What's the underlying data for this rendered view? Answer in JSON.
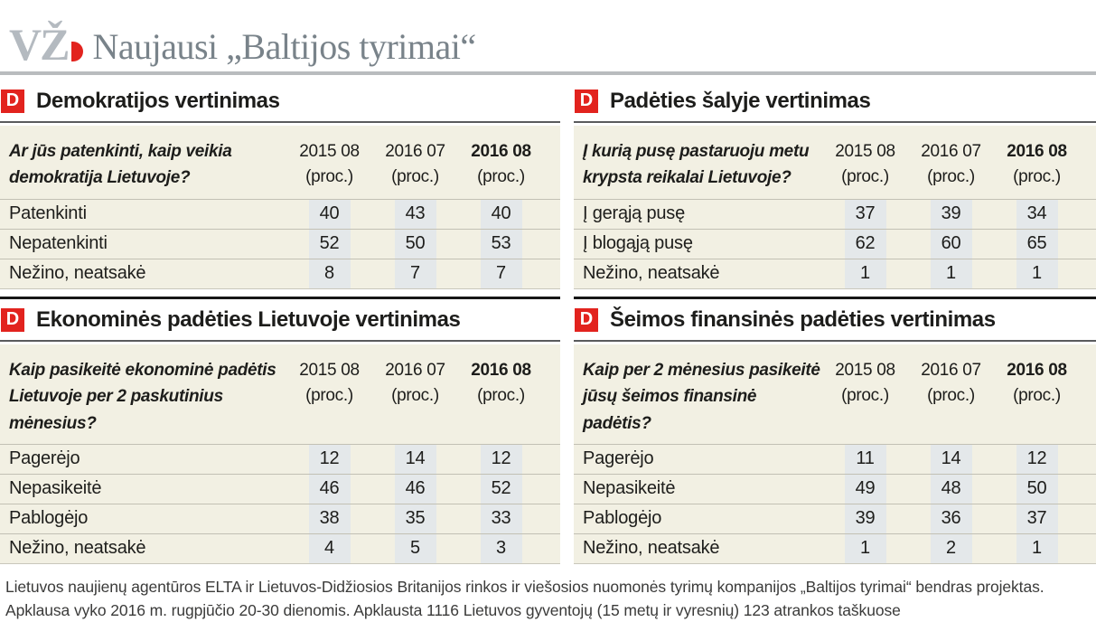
{
  "header": {
    "logo": "VŽ",
    "title": "Naujausi „Baltijos tyrimai“"
  },
  "icon": {
    "glyph": "D"
  },
  "colors": {
    "accent_red": "#e2231e",
    "panel_beige": "#f2f0e3",
    "column_stripe": "#e4e8ea",
    "logo_gray": "#b4bac0",
    "header_title_gray": "#79838a",
    "divider_black": "#161616"
  },
  "chart_data": [
    {
      "type": "table",
      "title": "Demokratijos vertinimas",
      "question": "Ar jūs patenkinti, kaip veikia demokratija Lietuvoje?",
      "columns": [
        "2015 08",
        "2016 07",
        "2016 08"
      ],
      "unit": "(proc.)",
      "bold_column": 2,
      "rows": [
        {
          "label": "Patenkinti",
          "values": [
            40,
            43,
            40
          ]
        },
        {
          "label": "Nepatenkinti",
          "values": [
            52,
            50,
            53
          ]
        },
        {
          "label": "Nežino, neatsakė",
          "values": [
            8,
            7,
            7
          ]
        }
      ]
    },
    {
      "type": "table",
      "title": "Padėties šalyje vertinimas",
      "question": "Į kurią pusę pastaruoju metu krypsta reikalai Lietuvoje?",
      "columns": [
        "2015 08",
        "2016 07",
        "2016 08"
      ],
      "unit": "(proc.)",
      "bold_column": 2,
      "rows": [
        {
          "label": "Į gerąją pusę",
          "values": [
            37,
            39,
            34
          ]
        },
        {
          "label": "Į blogąją pusę",
          "values": [
            62,
            60,
            65
          ]
        },
        {
          "label": "Nežino, neatsakė",
          "values": [
            1,
            1,
            1
          ]
        }
      ]
    },
    {
      "type": "table",
      "title": "Ekonominės padėties Lietuvoje vertinimas",
      "question": "Kaip pasikeitė ekonominė padėtis Lietuvoje per 2 paskutinius mėnesius?",
      "columns": [
        "2015 08",
        "2016 07",
        "2016 08"
      ],
      "unit": "(proc.)",
      "bold_column": 2,
      "rows": [
        {
          "label": "Pagerėjo",
          "values": [
            12,
            14,
            12
          ]
        },
        {
          "label": "Nepasikeitė",
          "values": [
            46,
            46,
            52
          ]
        },
        {
          "label": "Pablogėjo",
          "values": [
            38,
            35,
            33
          ]
        },
        {
          "label": "Nežino, neatsakė",
          "values": [
            4,
            5,
            3
          ]
        }
      ]
    },
    {
      "type": "table",
      "title": "Šeimos finansinės padėties vertinimas",
      "question": "Kaip per 2 mėnesius pasikeitė jūsų šeimos finansinė padėtis?",
      "columns": [
        "2015 08",
        "2016 07",
        "2016 08"
      ],
      "unit": "(proc.)",
      "bold_column": 2,
      "rows": [
        {
          "label": "Pagerėjo",
          "values": [
            11,
            14,
            12
          ]
        },
        {
          "label": "Nepasikeitė",
          "values": [
            49,
            48,
            50
          ]
        },
        {
          "label": "Pablogėjo",
          "values": [
            39,
            36,
            37
          ]
        },
        {
          "label": "Nežino, neatsakė",
          "values": [
            1,
            2,
            1
          ]
        }
      ]
    }
  ],
  "footer": {
    "text": "Lietuvos naujienų agentūros ELTA ir Lietuvos-Didžiosios Britanijos rinkos ir viešosios nuomonės tyrimų kompanijos „Baltijos tyrimai“ bendras projektas. Apklausa vyko 2016 m. rugpjūčio 20-30 dienomis. Apklausta 1116 Lietuvos gyventojų (15 metų ir vyresnių) 123 atrankos taškuose"
  }
}
